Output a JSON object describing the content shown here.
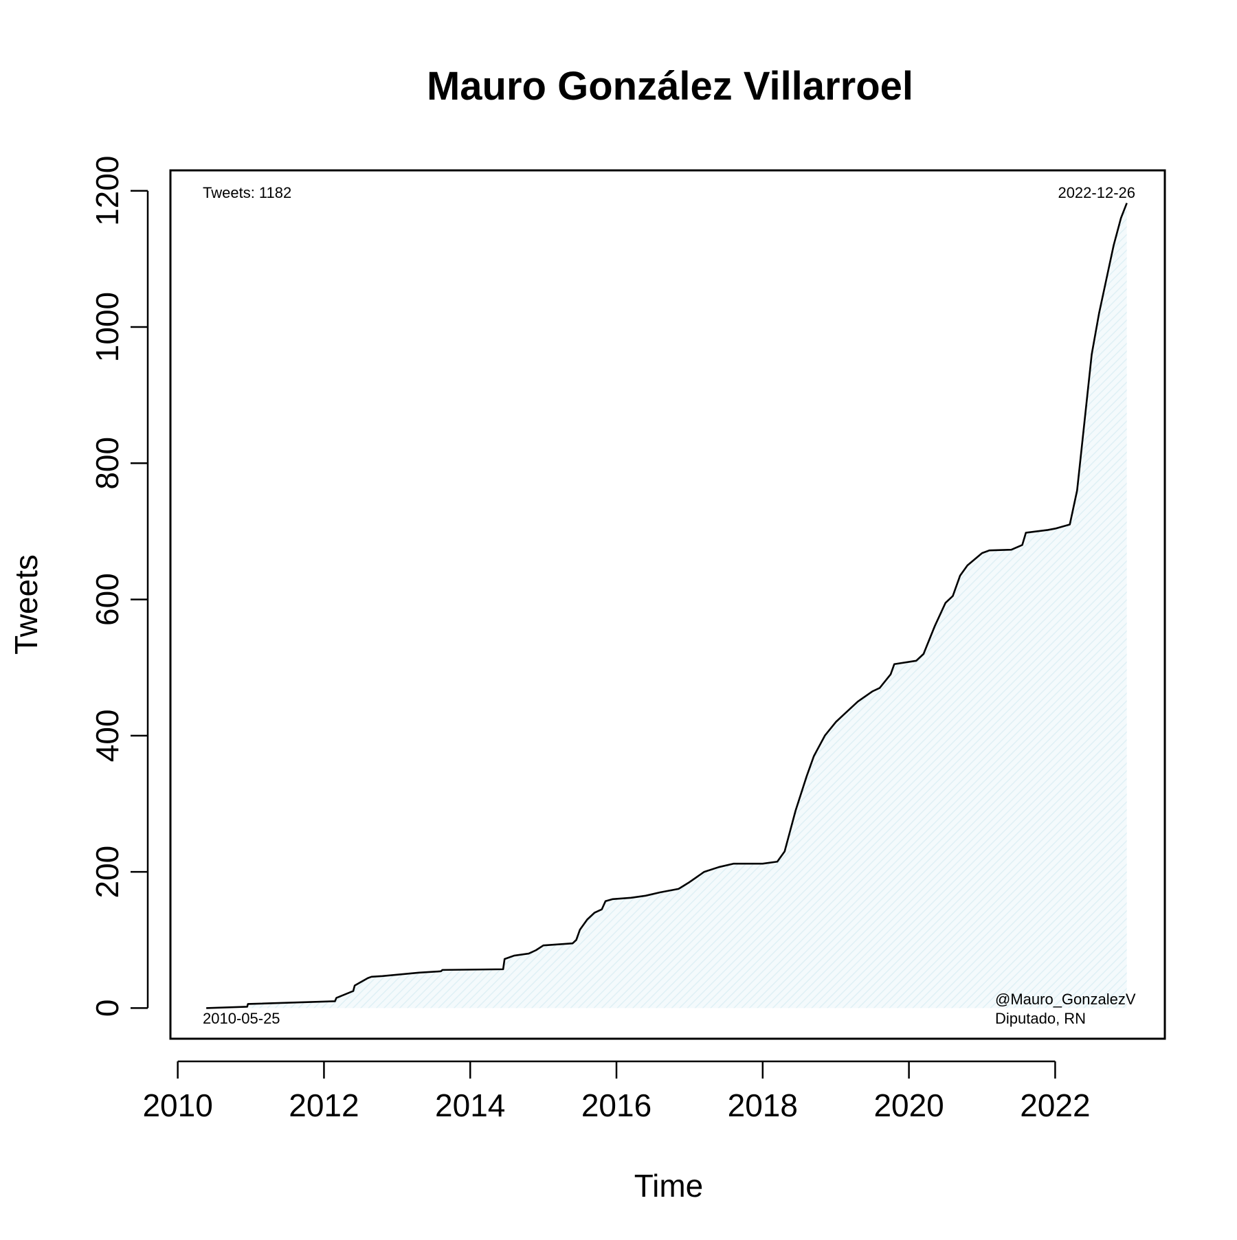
{
  "chart_data": {
    "type": "area",
    "title": "Mauro González Villarroel",
    "xlabel": "Time",
    "ylabel": "Tweets",
    "xlim": [
      2009.9,
      2023.5
    ],
    "ylim": [
      -45,
      1230
    ],
    "x_ticks": [
      2010,
      2012,
      2014,
      2016,
      2018,
      2020,
      2022
    ],
    "y_ticks": [
      0,
      200,
      400,
      600,
      800,
      1000,
      1200
    ],
    "grid": false,
    "fill_color": "#e8f4f8",
    "line_color": "#000000",
    "annotations": {
      "top_left": "Tweets: 1182",
      "top_right": "2022-12-26",
      "bottom_left": "2010-05-25",
      "bottom_right_line1": "@Mauro_GonzalezV",
      "bottom_right_line2": "Diputado, RN"
    },
    "series": [
      {
        "x": [
          2010.39,
          2010.95,
          2010.96,
          2012.15,
          2012.17,
          2012.4,
          2012.42,
          2012.5,
          2012.6,
          2012.65,
          2012.8,
          2013.0,
          2013.3,
          2013.6,
          2013.62,
          2014.45,
          2014.47,
          2014.6,
          2014.8,
          2014.9,
          2015.0,
          2015.4,
          2015.45,
          2015.5,
          2015.6,
          2015.7,
          2015.8,
          2015.85,
          2015.95,
          2016.2,
          2016.4,
          2016.6,
          2016.85,
          2017.0,
          2017.2,
          2017.4,
          2017.6,
          2018.0,
          2018.2,
          2018.3,
          2018.35,
          2018.45,
          2018.6,
          2018.7,
          2018.85,
          2019.0,
          2019.1,
          2019.3,
          2019.5,
          2019.6,
          2019.75,
          2019.8,
          2020.1,
          2020.2,
          2020.35,
          2020.5,
          2020.6,
          2020.7,
          2020.8,
          2021.0,
          2021.1,
          2021.4,
          2021.55,
          2021.6,
          2021.9,
          2022.0,
          2022.2,
          2022.3,
          2022.4,
          2022.5,
          2022.6,
          2022.7,
          2022.8,
          2022.9,
          2022.98
        ],
        "y": [
          0,
          2,
          6,
          10,
          15,
          25,
          33,
          38,
          44,
          46,
          47,
          49,
          52,
          54,
          56,
          57,
          72,
          77,
          80,
          85,
          92,
          95,
          100,
          115,
          130,
          140,
          145,
          157,
          160,
          162,
          165,
          170,
          175,
          185,
          200,
          207,
          212,
          212,
          215,
          230,
          250,
          290,
          340,
          370,
          400,
          420,
          430,
          450,
          465,
          470,
          490,
          505,
          510,
          520,
          560,
          595,
          605,
          635,
          650,
          668,
          672,
          673,
          680,
          698,
          702,
          704,
          710,
          760,
          860,
          960,
          1020,
          1070,
          1120,
          1160,
          1182
        ]
      }
    ]
  }
}
